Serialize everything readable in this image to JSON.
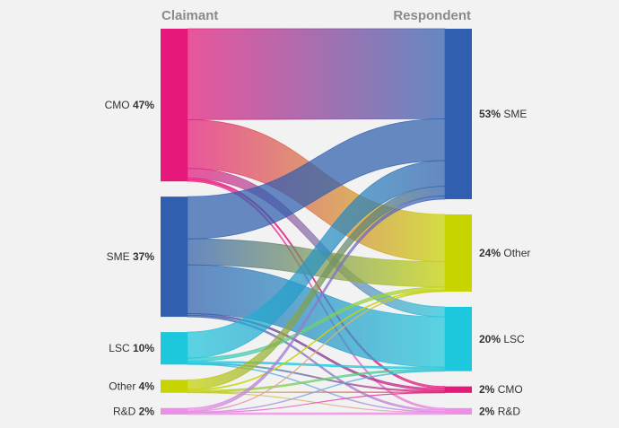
{
  "chart_data": {
    "type": "sankey",
    "left_title": "Claimant",
    "right_title": "Respondent",
    "left_nodes": [
      {
        "key": "CMO",
        "name": "CMO",
        "pct_label": "47%",
        "value": 47,
        "color": "#e6197a"
      },
      {
        "key": "SME",
        "name": "SME",
        "pct_label": "37%",
        "value": 37,
        "color": "#2f5fae"
      },
      {
        "key": "LSC",
        "name": "LSC",
        "pct_label": "10%",
        "value": 10,
        "color": "#1ec8dc"
      },
      {
        "key": "Other",
        "name": "Other",
        "pct_label": "4%",
        "value": 4,
        "color": "#c8d400"
      },
      {
        "key": "RD",
        "name": "R&D",
        "pct_label": "2%",
        "value": 2,
        "color": "#ee8ee8"
      }
    ],
    "right_nodes": [
      {
        "key": "SME",
        "name": "SME",
        "pct_label": "53%",
        "value": 53,
        "color": "#2f5fae"
      },
      {
        "key": "Other",
        "name": "Other",
        "pct_label": "24%",
        "value": 24,
        "color": "#c8d400"
      },
      {
        "key": "LSC",
        "name": "LSC",
        "pct_label": "20%",
        "value": 20,
        "color": "#1ec8dc"
      },
      {
        "key": "CMO",
        "name": "CMO",
        "pct_label": "2%",
        "value": 2,
        "color": "#e6197a"
      },
      {
        "key": "RD",
        "name": "R&D",
        "pct_label": "2%",
        "value": 2,
        "color": "#ee8ee8"
      }
    ],
    "links": [
      {
        "source": "CMO",
        "target": "SME",
        "value": 28
      },
      {
        "source": "CMO",
        "target": "Other",
        "value": 15
      },
      {
        "source": "CMO",
        "target": "LSC",
        "value": 3
      },
      {
        "source": "CMO",
        "target": "CMO",
        "value": 0.5
      },
      {
        "source": "CMO",
        "target": "RD",
        "value": 0.5
      },
      {
        "source": "SME",
        "target": "SME",
        "value": 13
      },
      {
        "source": "SME",
        "target": "Other",
        "value": 8
      },
      {
        "source": "SME",
        "target": "LSC",
        "value": 15
      },
      {
        "source": "SME",
        "target": "CMO",
        "value": 0.5
      },
      {
        "source": "SME",
        "target": "RD",
        "value": 0.5
      },
      {
        "source": "LSC",
        "target": "SME",
        "value": 8
      },
      {
        "source": "LSC",
        "target": "Other",
        "value": 1
      },
      {
        "source": "LSC",
        "target": "LSC",
        "value": 0.5
      },
      {
        "source": "LSC",
        "target": "CMO",
        "value": 0.3
      },
      {
        "source": "LSC",
        "target": "RD",
        "value": 0.2
      },
      {
        "source": "Other",
        "target": "SME",
        "value": 3
      },
      {
        "source": "Other",
        "target": "Other",
        "value": 0.3
      },
      {
        "source": "Other",
        "target": "LSC",
        "value": 0.5
      },
      {
        "source": "Other",
        "target": "CMO",
        "value": 0.1
      },
      {
        "source": "Other",
        "target": "RD",
        "value": 0.1
      },
      {
        "source": "RD",
        "target": "SME",
        "value": 1
      },
      {
        "source": "RD",
        "target": "Other",
        "value": 0.2
      },
      {
        "source": "RD",
        "target": "LSC",
        "value": 0.2
      },
      {
        "source": "RD",
        "target": "CMO",
        "value": 0.1
      },
      {
        "source": "RD",
        "target": "RD",
        "value": 0.5
      }
    ]
  }
}
